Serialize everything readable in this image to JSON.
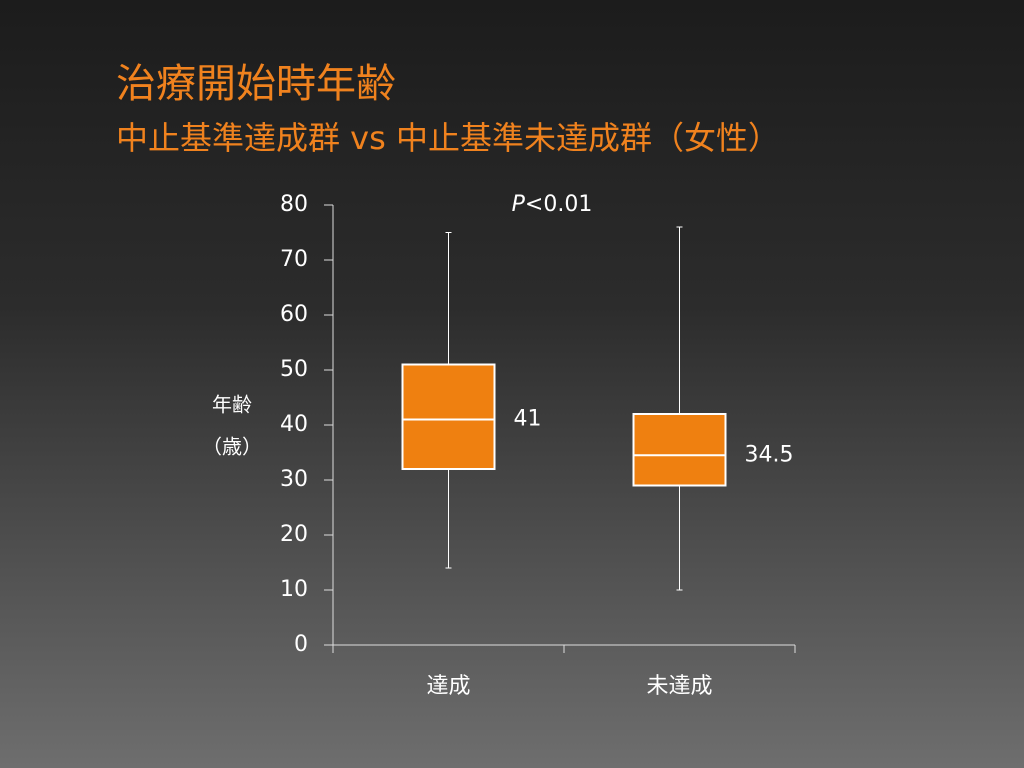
{
  "chart_data": {
    "type": "box",
    "title": "治療開始時年齢",
    "subtitle": "中止基準達成群 vs 中止基準未達成群（女性）",
    "y_label": [
      "年齢",
      "（歳）"
    ],
    "annotation": {
      "italic": "P",
      "rest": "<0.01"
    },
    "categories": [
      "達成",
      "未達成"
    ],
    "boxes": [
      {
        "min": 14,
        "q1": 32,
        "median": 41,
        "q3": 51,
        "max": 75
      },
      {
        "min": 10,
        "q1": 29,
        "median": 34.5,
        "q3": 42,
        "max": 76
      }
    ],
    "color": "#ef8010",
    "ylim": [
      0,
      80
    ],
    "yticks": [
      0,
      10,
      20,
      30,
      40,
      50,
      60,
      70,
      80
    ]
  }
}
